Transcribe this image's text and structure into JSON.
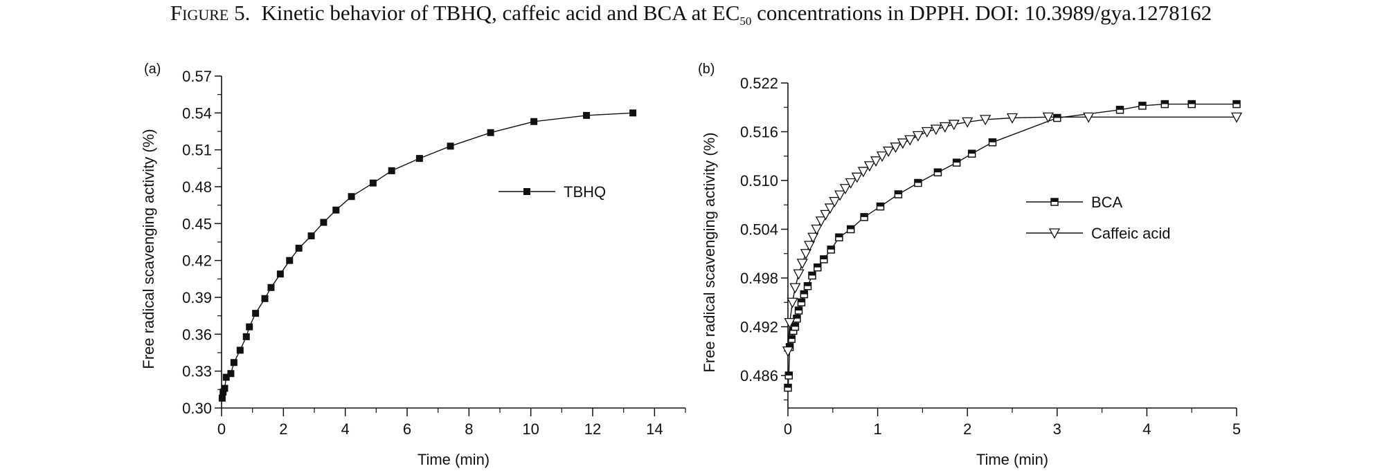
{
  "caption": {
    "label": "Figure 5.",
    "text_before": "Kinetic behavior of TBHQ, caffeic acid and BCA at EC",
    "subscript": "50",
    "text_after": " concentrations in DPPH. DOI: 10.3989/gya.1278162"
  },
  "chart_data": [
    {
      "type": "line",
      "panel_label": "(a)",
      "xlabel": "Time (min)",
      "ylabel": "Free radical scavenging activity (%)",
      "xlim": [
        0,
        15
      ],
      "ylim": [
        0.3,
        0.57
      ],
      "xticks": [
        "0",
        "2",
        "4",
        "6",
        "8",
        "10",
        "12",
        "14"
      ],
      "yticks": [
        "0.30",
        "0.33",
        "0.36",
        "0.39",
        "0.42",
        "0.45",
        "0.48",
        "0.51",
        "0.54",
        "0.57"
      ],
      "legend_position": "upper-right",
      "series": [
        {
          "name": "TBHQ",
          "marker": "filled-square",
          "x": [
            0.02,
            0.05,
            0.1,
            0.15,
            0.3,
            0.4,
            0.6,
            0.8,
            0.9,
            1.1,
            1.4,
            1.6,
            1.9,
            2.2,
            2.5,
            2.9,
            3.3,
            3.7,
            4.2,
            4.9,
            5.5,
            6.4,
            7.4,
            8.7,
            10.1,
            11.8,
            13.3
          ],
          "y": [
            0.308,
            0.313,
            0.316,
            0.325,
            0.328,
            0.337,
            0.347,
            0.358,
            0.366,
            0.377,
            0.389,
            0.398,
            0.409,
            0.42,
            0.43,
            0.44,
            0.451,
            0.461,
            0.472,
            0.483,
            0.493,
            0.503,
            0.513,
            0.524,
            0.533,
            0.538,
            0.54
          ]
        }
      ]
    },
    {
      "type": "line",
      "panel_label": "(b)",
      "xlabel": "Time (min)",
      "ylabel": "Free radical scavenging activity (%)",
      "xlim": [
        0,
        5
      ],
      "ylim": [
        0.482,
        0.522
      ],
      "xticks": [
        "0",
        "1",
        "2",
        "3",
        "4",
        "5"
      ],
      "yticks": [
        "0.486",
        "0.492",
        "0.498",
        "0.504",
        "0.510",
        "0.516",
        "0.522"
      ],
      "legend_position": "right",
      "series": [
        {
          "name": "BCA",
          "marker": "half-filled-square",
          "x": [
            0.0,
            0.01,
            0.02,
            0.04,
            0.06,
            0.08,
            0.1,
            0.12,
            0.15,
            0.18,
            0.22,
            0.27,
            0.33,
            0.4,
            0.48,
            0.57,
            0.7,
            0.85,
            1.03,
            1.23,
            1.45,
            1.67,
            1.88,
            2.05,
            2.28,
            3.0,
            3.7,
            3.95,
            4.2,
            4.5,
            5.0
          ],
          "y": [
            0.4845,
            0.486,
            0.4895,
            0.4905,
            0.4915,
            0.492,
            0.493,
            0.494,
            0.495,
            0.496,
            0.497,
            0.4983,
            0.4993,
            0.5003,
            0.5015,
            0.503,
            0.504,
            0.5055,
            0.5068,
            0.5083,
            0.5097,
            0.511,
            0.5122,
            0.5133,
            0.5147,
            0.5177,
            0.5187,
            0.5192,
            0.5194,
            0.5194,
            0.5194
          ]
        },
        {
          "name": "Caffeic acid",
          "marker": "open-triangle-down",
          "x": [
            0.0,
            0.02,
            0.05,
            0.08,
            0.12,
            0.16,
            0.2,
            0.24,
            0.28,
            0.32,
            0.37,
            0.42,
            0.47,
            0.52,
            0.58,
            0.64,
            0.7,
            0.77,
            0.84,
            0.91,
            0.98,
            1.05,
            1.12,
            1.2,
            1.28,
            1.36,
            1.45,
            1.55,
            1.65,
            1.75,
            1.85,
            2.0,
            2.2,
            2.5,
            2.9,
            3.35,
            5.0
          ],
          "y": [
            0.489,
            0.4925,
            0.495,
            0.4968,
            0.4985,
            0.4998,
            0.501,
            0.502,
            0.503,
            0.504,
            0.505,
            0.5058,
            0.5066,
            0.5074,
            0.5082,
            0.509,
            0.5097,
            0.5104,
            0.5111,
            0.5118,
            0.5124,
            0.513,
            0.5136,
            0.5141,
            0.5146,
            0.515,
            0.5155,
            0.516,
            0.5163,
            0.5166,
            0.5169,
            0.5172,
            0.5175,
            0.5177,
            0.5178,
            0.5178,
            0.5178
          ]
        }
      ]
    }
  ]
}
